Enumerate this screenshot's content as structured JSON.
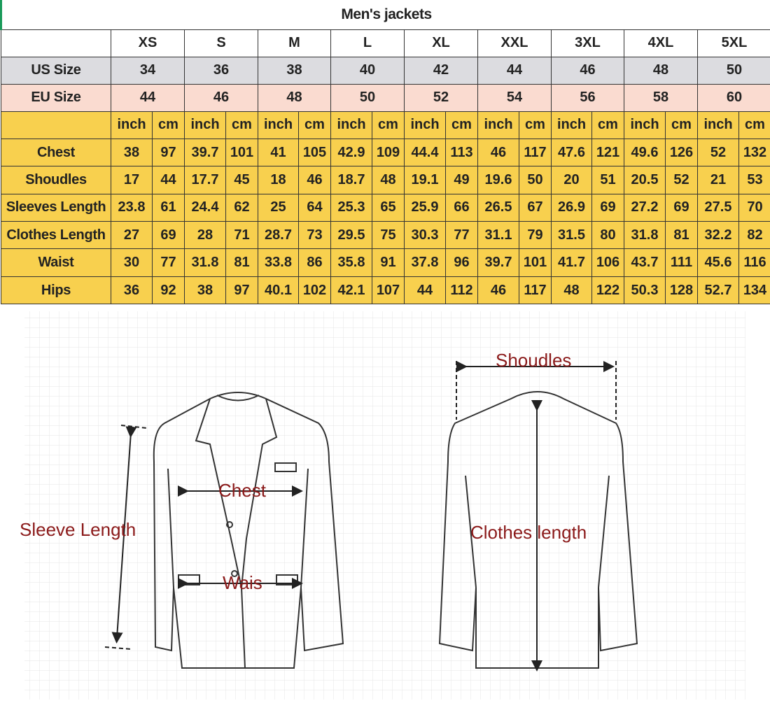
{
  "title": "Men's jackets",
  "sizes": [
    "XS",
    "S",
    "M",
    "L",
    "XL",
    "XXL",
    "3XL",
    "4XL",
    "5XL"
  ],
  "us_size": {
    "label": "US Size",
    "values": [
      "34",
      "36",
      "38",
      "40",
      "42",
      "44",
      "46",
      "48",
      "50"
    ]
  },
  "eu_size": {
    "label": "EU Size",
    "values": [
      "44",
      "46",
      "48",
      "50",
      "52",
      "54",
      "56",
      "58",
      "60"
    ]
  },
  "units": {
    "inch": "inch",
    "cm": "cm"
  },
  "rows": [
    {
      "label": "Chest",
      "values": [
        [
          "38",
          "97"
        ],
        [
          "39.7",
          "101"
        ],
        [
          "41",
          "105"
        ],
        [
          "42.9",
          "109"
        ],
        [
          "44.4",
          "113"
        ],
        [
          "46",
          "117"
        ],
        [
          "47.6",
          "121"
        ],
        [
          "49.6",
          "126"
        ],
        [
          "52",
          "132"
        ]
      ]
    },
    {
      "label": "Shoudles",
      "values": [
        [
          "17",
          "44"
        ],
        [
          "17.7",
          "45"
        ],
        [
          "18",
          "46"
        ],
        [
          "18.7",
          "48"
        ],
        [
          "19.1",
          "49"
        ],
        [
          "19.6",
          "50"
        ],
        [
          "20",
          "51"
        ],
        [
          "20.5",
          "52"
        ],
        [
          "21",
          "53"
        ]
      ]
    },
    {
      "label": "Sleeves Length",
      "values": [
        [
          "23.8",
          "61"
        ],
        [
          "24.4",
          "62"
        ],
        [
          "25",
          "64"
        ],
        [
          "25.3",
          "65"
        ],
        [
          "25.9",
          "66"
        ],
        [
          "26.5",
          "67"
        ],
        [
          "26.9",
          "69"
        ],
        [
          "27.2",
          "69"
        ],
        [
          "27.5",
          "70"
        ]
      ]
    },
    {
      "label": "Clothes Length",
      "values": [
        [
          "27",
          "69"
        ],
        [
          "28",
          "71"
        ],
        [
          "28.7",
          "73"
        ],
        [
          "29.5",
          "75"
        ],
        [
          "30.3",
          "77"
        ],
        [
          "31.1",
          "79"
        ],
        [
          "31.5",
          "80"
        ],
        [
          "31.8",
          "81"
        ],
        [
          "32.2",
          "82"
        ]
      ]
    },
    {
      "label": "Waist",
      "values": [
        [
          "30",
          "77"
        ],
        [
          "31.8",
          "81"
        ],
        [
          "33.8",
          "86"
        ],
        [
          "35.8",
          "91"
        ],
        [
          "37.8",
          "96"
        ],
        [
          "39.7",
          "101"
        ],
        [
          "41.7",
          "106"
        ],
        [
          "43.7",
          "111"
        ],
        [
          "45.6",
          "116"
        ]
      ]
    },
    {
      "label": "Hips",
      "values": [
        [
          "36",
          "92"
        ],
        [
          "38",
          "97"
        ],
        [
          "40.1",
          "102"
        ],
        [
          "42.1",
          "107"
        ],
        [
          "44",
          "112"
        ],
        [
          "46",
          "117"
        ],
        [
          "48",
          "122"
        ],
        [
          "50.3",
          "128"
        ],
        [
          "52.7",
          "134"
        ]
      ]
    }
  ],
  "diagram": {
    "front_labels": {
      "chest": "Chest",
      "sleeve": "Sleeve Length",
      "waist": "Wais"
    },
    "back_labels": {
      "shoulders": "Shoudles",
      "length": "Clothes length"
    }
  },
  "colors": {
    "us_row": "#dcdce0",
    "eu_row": "#fadbd0",
    "measure_rows": "#f8d04e",
    "label_text": "#8b1a1a"
  }
}
